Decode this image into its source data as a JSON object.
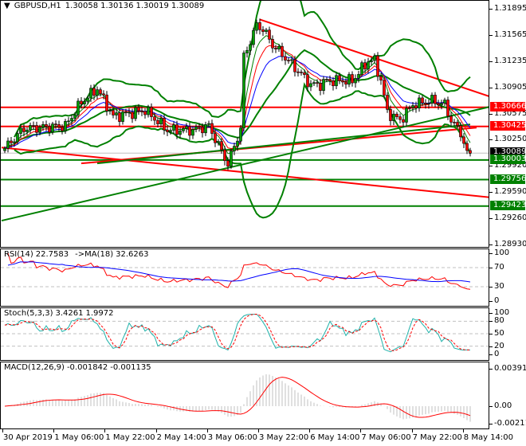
{
  "header": {
    "symbol": "GBPUSD,H1",
    "open": "1.30058",
    "high": "1.30136",
    "low": "1.30019",
    "close": "1.30089"
  },
  "indicators": {
    "rsi": {
      "name": "RSI(14)",
      "value": "22.7583",
      "ma_name": "->MA(18)",
      "ma_value": "32.6263"
    },
    "stoch": {
      "name": "Stoch(5,3,3)",
      "k": "3.4261",
      "d": "1.9972"
    },
    "macd": {
      "name": "MACD(12,26,9)",
      "main": "-0.001842",
      "signal": "-0.001135"
    }
  },
  "price_axis": [
    "1.31895",
    "1.31565",
    "1.31235",
    "1.30905",
    "1.30575",
    "1.30250",
    "1.29920",
    "1.29590",
    "1.29260",
    "1.28930"
  ],
  "levels": [
    {
      "price": "1.30666",
      "color": "#ff0000"
    },
    {
      "price": "1.30425",
      "color": "#ff0000"
    },
    {
      "price": "1.30089",
      "color": "#000000",
      "current": true
    },
    {
      "price": "1.30003",
      "color": "#008000"
    },
    {
      "price": "1.29756",
      "color": "#008000"
    },
    {
      "price": "1.29423",
      "color": "#008000"
    }
  ],
  "rsi_axis": [
    "100",
    "70",
    "30",
    "0"
  ],
  "stoch_axis": [
    "100",
    "80",
    "50",
    "20",
    "0"
  ],
  "macd_axis": [
    "0.003918",
    "0.00",
    "-0.002117"
  ],
  "time_axis": [
    "30 Apr 2019",
    "1 May 06:00",
    "1 May 22:00",
    "2 May 14:00",
    "3 May 06:00",
    "3 May 22:00",
    "6 May 14:00",
    "7 May 06:00",
    "7 May 22:00",
    "8 May 14:00"
  ],
  "chart_data": {
    "type": "candlestick",
    "title": "GBPUSD,H1",
    "ylim": [
      1.2893,
      1.31895
    ],
    "bars": 147,
    "close_path": [
      [
        0,
        1.3015
      ],
      [
        6,
        1.304
      ],
      [
        19,
        1.3043
      ],
      [
        24,
        1.3073
      ],
      [
        29,
        1.309
      ],
      [
        34,
        1.3055
      ],
      [
        44,
        1.3063
      ],
      [
        51,
        1.3038
      ],
      [
        59,
        1.3038
      ],
      [
        64,
        1.3043
      ],
      [
        70,
        1.2995
      ],
      [
        74,
        1.304
      ],
      [
        75,
        1.313
      ],
      [
        79,
        1.317
      ],
      [
        81,
        1.3165
      ],
      [
        84,
        1.3145
      ],
      [
        89,
        1.3125
      ],
      [
        96,
        1.3095
      ],
      [
        99,
        1.3095
      ],
      [
        101,
        1.31
      ],
      [
        109,
        1.31
      ],
      [
        114,
        1.3125
      ],
      [
        116,
        1.3125
      ],
      [
        118,
        1.31
      ],
      [
        120,
        1.306
      ],
      [
        124,
        1.305
      ],
      [
        128,
        1.307
      ],
      [
        134,
        1.3075
      ],
      [
        138,
        1.307
      ],
      [
        140,
        1.305
      ],
      [
        143,
        1.3035
      ],
      [
        145,
        1.3008
      ],
      [
        146,
        1.30089
      ]
    ],
    "trendlines": [
      {
        "color": "#ff0000",
        "from": [
          80,
          1.3177
        ],
        "to": [
          153,
          1.3079
        ]
      },
      {
        "color": "#ff0000",
        "from": [
          -1,
          1.3016
        ],
        "to": [
          153,
          1.2953
        ]
      },
      {
        "color": "#ff0000",
        "from": [
          24,
          1.2996
        ],
        "to": [
          148,
          1.3041
        ]
      },
      {
        "color": "#008000",
        "from": [
          -1,
          1.2924
        ],
        "to": [
          153,
          1.3068
        ]
      },
      {
        "color": "#008000",
        "from": [
          29,
          1.2996
        ],
        "to": [
          146,
          1.3045
        ]
      }
    ],
    "colors": {
      "bull": "#000000",
      "bear": "#000000",
      "bear_body": "#ff0000",
      "bull_body": "#00a000",
      "bands": "#008000",
      "ma_fast": "#008000",
      "ma_mid": "#ff0000",
      "ma_slow": "#0000ff"
    }
  }
}
